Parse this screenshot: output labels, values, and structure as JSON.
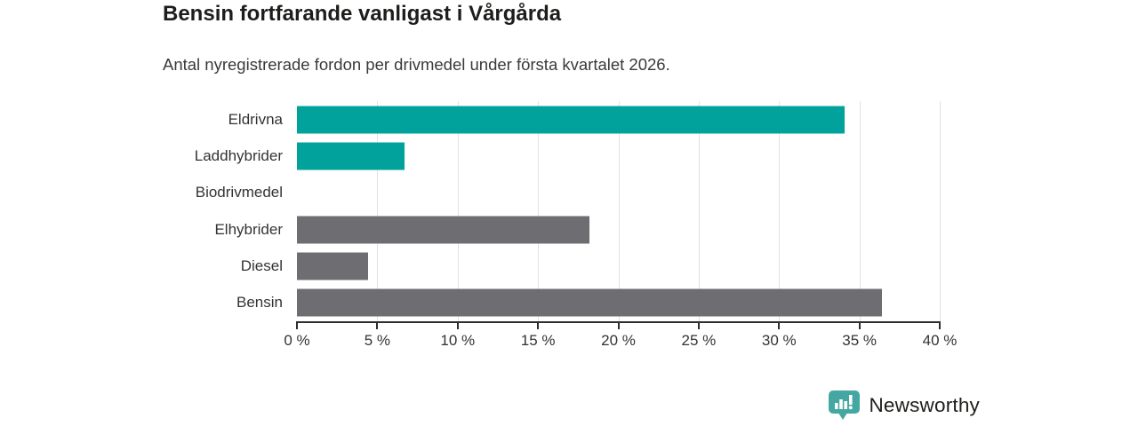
{
  "header": {
    "title": "Bensin fortfarande vanligast i Vårgårda",
    "subtitle": "Antal nyregistrerade fordon per drivmedel under första kvartalet 2026."
  },
  "chart_data": {
    "type": "bar",
    "orientation": "horizontal",
    "title": "Bensin fortfarande vanligast i Vårgårda",
    "subtitle": "Antal nyregistrerade fordon per drivmedel under första kvartalet 2026.",
    "categories": [
      "Eldrivna",
      "Laddhybrider",
      "Biodrivmedel",
      "Elhybrider",
      "Diesel",
      "Bensin"
    ],
    "values": [
      34.1,
      6.7,
      0,
      18.2,
      4.4,
      36.4
    ],
    "unit": "%",
    "bar_colors": [
      "#00a29b",
      "#00a29b",
      "#00a29b",
      "#6d6d72",
      "#6d6d72",
      "#6d6d72"
    ],
    "xlabel": "",
    "ylabel": "",
    "xlim": [
      0,
      40
    ],
    "x_ticks": [
      0,
      5,
      10,
      15,
      20,
      25,
      30,
      35,
      40
    ],
    "x_tick_labels": [
      "0 %",
      "5 %",
      "10 %",
      "15 %",
      "20 %",
      "25 %",
      "30 %",
      "35 %",
      "40 %"
    ],
    "grid": "vertical-gridlines-on",
    "legend": "none"
  },
  "branding": {
    "logo_text": "Newsworthy",
    "logo_text_color": "#3b9691",
    "logo_icon_color": "#45a7a1",
    "logo_icon": "speech-bubble-bar-chart-icon"
  },
  "colors": {
    "accent_teal": "#00a29b",
    "bar_gray": "#6d6d72",
    "axis": "#2e2e2e",
    "gridline": "#e2e2e2",
    "title_text": "#1d1d1b",
    "body_text": "#333333",
    "background": "#ffffff"
  }
}
